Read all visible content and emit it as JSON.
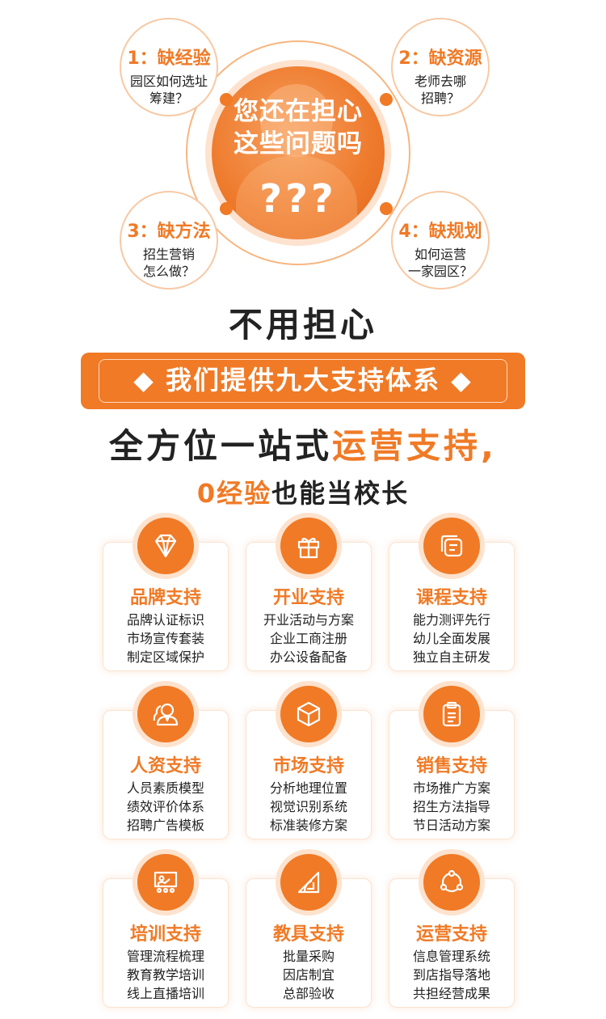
{
  "top": {
    "center_line1": "您还在担心",
    "center_line2": "这些问题吗",
    "question_marks": "???",
    "bubbles": [
      {
        "title": "1：缺经验",
        "line1": "园区如何选址",
        "line2": "筹建？"
      },
      {
        "title": "2：缺资源",
        "line1": "老师去哪",
        "line2": "招聘？"
      },
      {
        "title": "3：缺方法",
        "line1": "招生营销",
        "line2": "怎么做？"
      },
      {
        "title": "4：缺规划",
        "line1": "如何运营",
        "line2": "一家园区？"
      }
    ]
  },
  "headline": {
    "no_worry": "不用担心",
    "banner": "◆ 我们提供九大支持体系 ◆",
    "line1_a": "全方位一站式",
    "line1_b": "运营支持,",
    "line2_a": "0经验",
    "line2_b": "也能当校长"
  },
  "cards": [
    {
      "icon": "diamond-icon",
      "title": "品牌支持",
      "lines": [
        "品牌认证标识",
        "市场宣传套装",
        "制定区域保护"
      ]
    },
    {
      "icon": "gift-icon",
      "title": "开业支持",
      "lines": [
        "开业活动与方案",
        "企业工商注册",
        "办公设备配备"
      ]
    },
    {
      "icon": "stack-icon",
      "title": "课程支持",
      "lines": [
        "能力测评先行",
        "幼儿全面发展",
        "独立自主研发"
      ]
    },
    {
      "icon": "people-icon",
      "title": "人资支持",
      "lines": [
        "人员素质模型",
        "绩效评价体系",
        "招聘广告模板"
      ]
    },
    {
      "icon": "cube-icon",
      "title": "市场支持",
      "lines": [
        "分析地理位置",
        "视觉识别系统",
        "标准装修方案"
      ]
    },
    {
      "icon": "clipboard-icon",
      "title": "销售支持",
      "lines": [
        "市场推广方案",
        "招生方法指导",
        "节日活动方案"
      ]
    },
    {
      "icon": "presentation-icon",
      "title": "培训支持",
      "lines": [
        "管理流程梳理",
        "教育教学培训",
        "线上直播培训"
      ]
    },
    {
      "icon": "ruler-triangle-icon",
      "title": "教具支持",
      "lines": [
        "批量采购",
        "因店制宜",
        "总部验收"
      ]
    },
    {
      "icon": "cycle-icon",
      "title": "运营支持",
      "lines": [
        "信息管理系统",
        "到店指导落地",
        "共担经营成果"
      ]
    }
  ],
  "colors": {
    "accent": "#f07a26",
    "accent_light": "#fde2cd",
    "text": "#222222"
  }
}
